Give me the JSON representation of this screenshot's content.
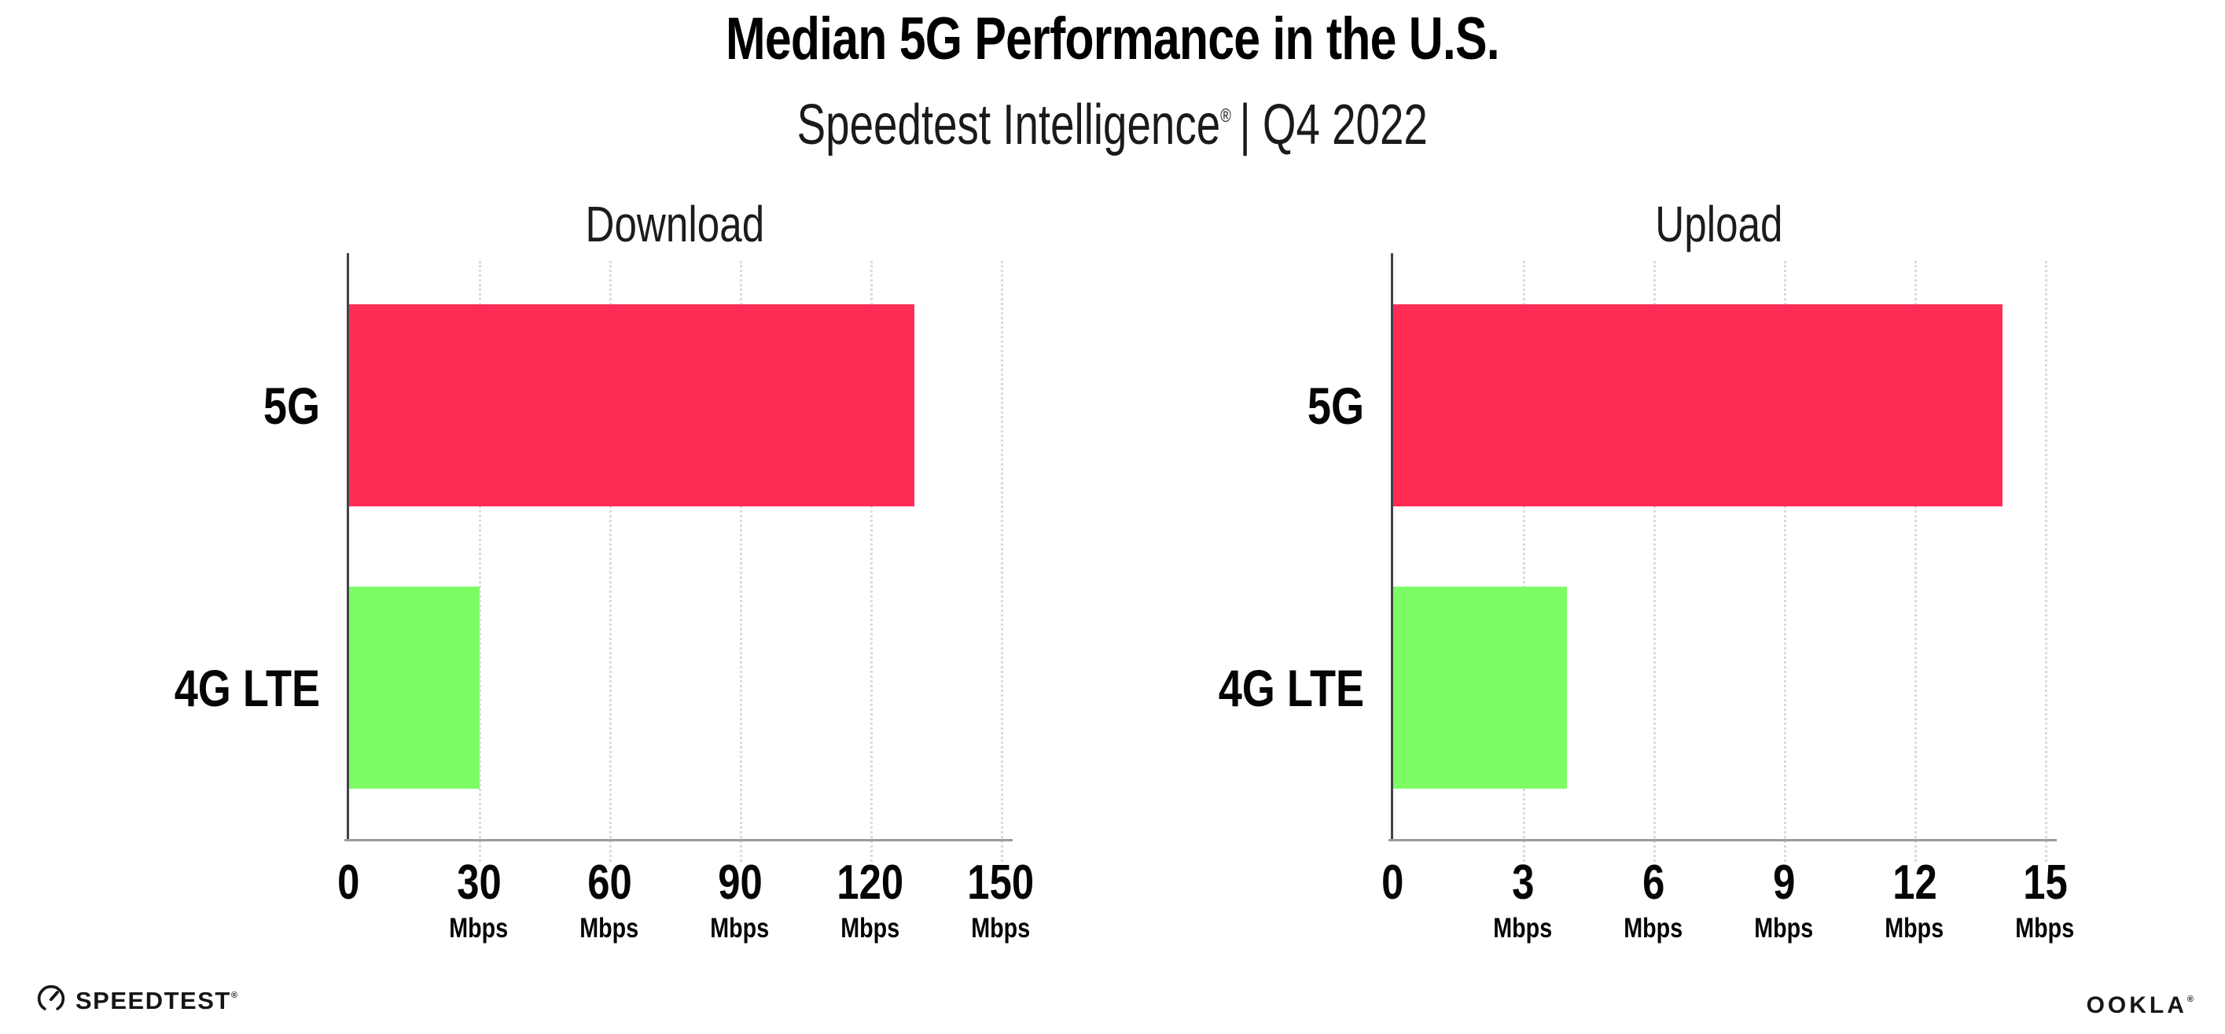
{
  "title": "Median 5G Performance in the U.S.",
  "subtitle": {
    "brand": "Speedtest Intelligence",
    "registered": "®",
    "rest": "| Q4 2022"
  },
  "footer": {
    "speedtest_label": "SPEEDTEST",
    "speedtest_registered": "®",
    "ookla_label": "OOKLA",
    "ookla_registered": "®"
  },
  "colors": {
    "bar_5g": "#FF2D55",
    "bar_4g_lte": "#7DFC66",
    "y_axis": "#42424c",
    "x_axis": "#9a9aa2",
    "gridline": "#d9d9e4",
    "text": "#000000"
  },
  "chart_data": [
    {
      "type": "bar",
      "orientation": "horizontal",
      "title": "Download",
      "categories": [
        "5G",
        "4G LTE"
      ],
      "values": [
        130,
        30
      ],
      "unit": "Mbps",
      "xlim": [
        0,
        150
      ],
      "xticks": [
        0,
        30,
        60,
        90,
        120,
        150
      ],
      "bar_colors": [
        "#FF2D55",
        "#7DFC66"
      ],
      "grid": "dotted-vertical",
      "legend": "none"
    },
    {
      "type": "bar",
      "orientation": "horizontal",
      "title": "Upload",
      "categories": [
        "5G",
        "4G LTE"
      ],
      "values": [
        14,
        4
      ],
      "unit": "Mbps",
      "xlim": [
        0,
        15
      ],
      "xticks": [
        0,
        3,
        6,
        9,
        12,
        15
      ],
      "bar_colors": [
        "#FF2D55",
        "#7DFC66"
      ],
      "grid": "dotted-vertical",
      "legend": "none"
    }
  ]
}
